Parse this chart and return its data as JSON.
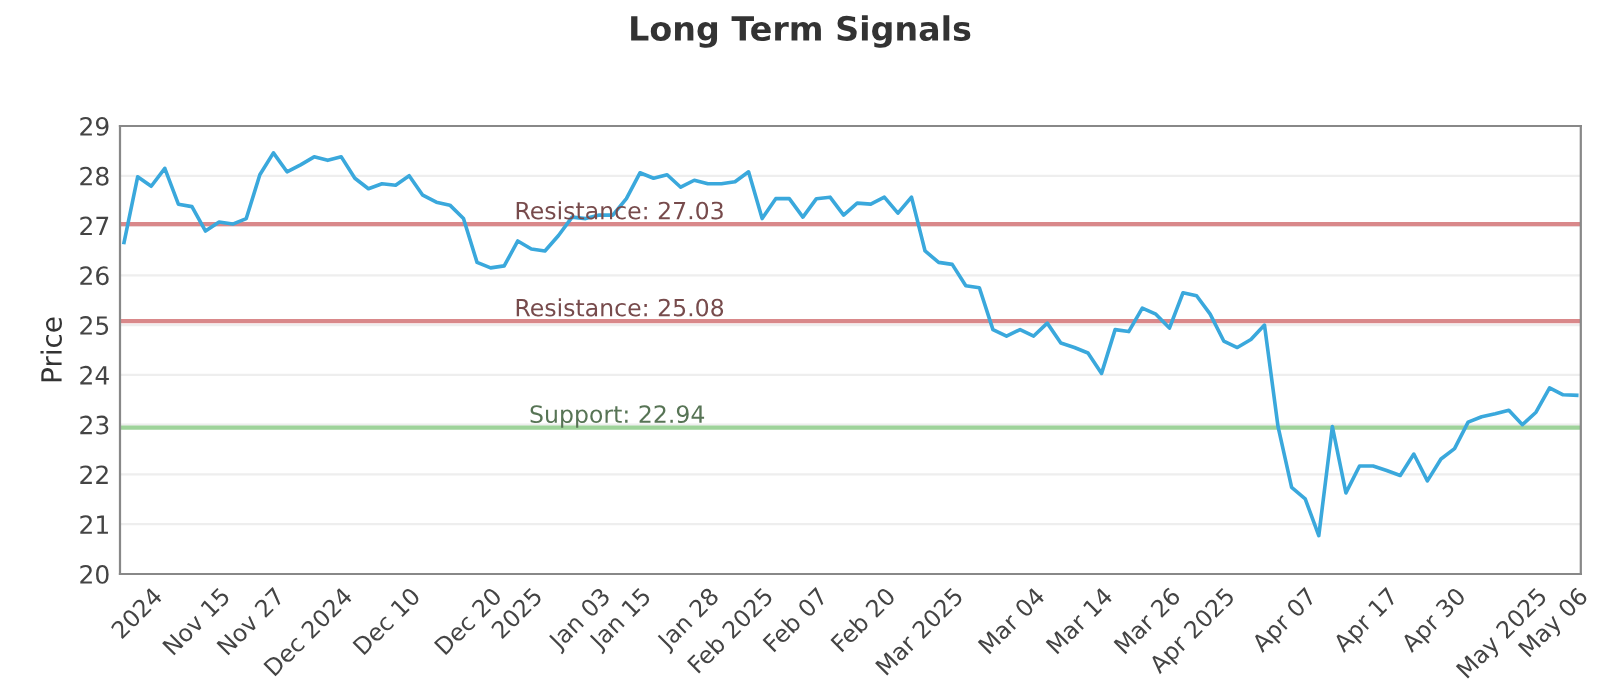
{
  "chart_data": {
    "type": "line",
    "title": "Long Term Signals",
    "ylabel": "Price",
    "categories": [
      null,
      null,
      "2024",
      null,
      null,
      null,
      null,
      "Nov 15",
      null,
      null,
      null,
      "Nov 27",
      null,
      null,
      null,
      null,
      "Dec 2024",
      null,
      null,
      null,
      null,
      "Dec 10",
      null,
      null,
      null,
      null,
      null,
      "Dec 20",
      null,
      null,
      "2025",
      null,
      null,
      null,
      null,
      "Jan 03",
      null,
      null,
      "Jan 15",
      null,
      null,
      null,
      null,
      "Jan 28",
      null,
      null,
      null,
      "Feb 2025",
      null,
      null,
      null,
      "Feb 07",
      null,
      null,
      null,
      null,
      "Feb 20",
      null,
      null,
      null,
      null,
      "Mar 2025",
      null,
      null,
      null,
      null,
      null,
      "Mar 04",
      null,
      null,
      null,
      null,
      "Mar 14",
      null,
      null,
      null,
      null,
      "Mar 26",
      null,
      null,
      null,
      "Apr 2025",
      null,
      null,
      null,
      null,
      null,
      "Apr 07",
      null,
      null,
      null,
      null,
      null,
      "Apr 17",
      null,
      null,
      null,
      null,
      "Apr 30",
      null,
      null,
      null,
      null,
      null,
      "May 2025",
      null,
      null,
      "May 06"
    ],
    "series": [
      {
        "color": "#3aa8dc",
        "values": [
          26.66,
          27.98,
          27.79,
          28.15,
          27.43,
          27.38,
          26.89,
          27.07,
          27.03,
          27.14,
          28.02,
          28.46,
          28.08,
          28.22,
          28.38,
          28.31,
          28.38,
          27.95,
          27.74,
          27.84,
          27.81,
          28.0,
          27.61,
          27.47,
          27.41,
          27.14,
          26.26,
          26.15,
          26.19,
          26.69,
          26.53,
          26.49,
          26.8,
          27.17,
          27.14,
          27.21,
          27.21,
          27.54,
          28.06,
          27.95,
          28.02,
          27.77,
          27.91,
          27.84,
          27.84,
          27.88,
          28.08,
          27.14,
          27.54,
          27.54,
          27.17,
          27.54,
          27.57,
          27.21,
          27.45,
          27.43,
          27.57,
          27.25,
          27.57,
          26.49,
          26.26,
          26.22,
          25.79,
          25.75,
          24.91,
          24.78,
          24.91,
          24.78,
          25.04,
          24.64,
          24.55,
          24.44,
          24.03,
          24.91,
          24.87,
          25.34,
          25.22,
          24.94,
          25.65,
          25.59,
          25.22,
          24.68,
          24.55,
          24.71,
          25.0,
          22.96,
          21.74,
          21.51,
          20.77,
          22.96,
          21.63,
          22.17,
          22.17,
          22.08,
          21.98,
          22.41,
          21.87,
          22.31,
          22.52,
          23.05,
          23.16,
          23.22,
          23.29,
          23.0,
          23.25,
          23.74,
          23.6,
          23.59
        ]
      }
    ],
    "ylim": [
      20,
      29
    ],
    "yticks": [
      20,
      21,
      22,
      23,
      24,
      25,
      26,
      27,
      28,
      29
    ],
    "grid": "y",
    "marker": "none",
    "line_style": "solid",
    "ref_lines": [
      {
        "axis": "y",
        "value": 27.03,
        "label": "Resistance: 27.03",
        "color": "#d9888a"
      },
      {
        "axis": "y",
        "value": 25.08,
        "label": "Resistance: 25.08",
        "color": "#d9888a"
      },
      {
        "axis": "y",
        "value": 22.94,
        "label": "Support: 22.94",
        "color": "#9ed39a"
      }
    ]
  }
}
